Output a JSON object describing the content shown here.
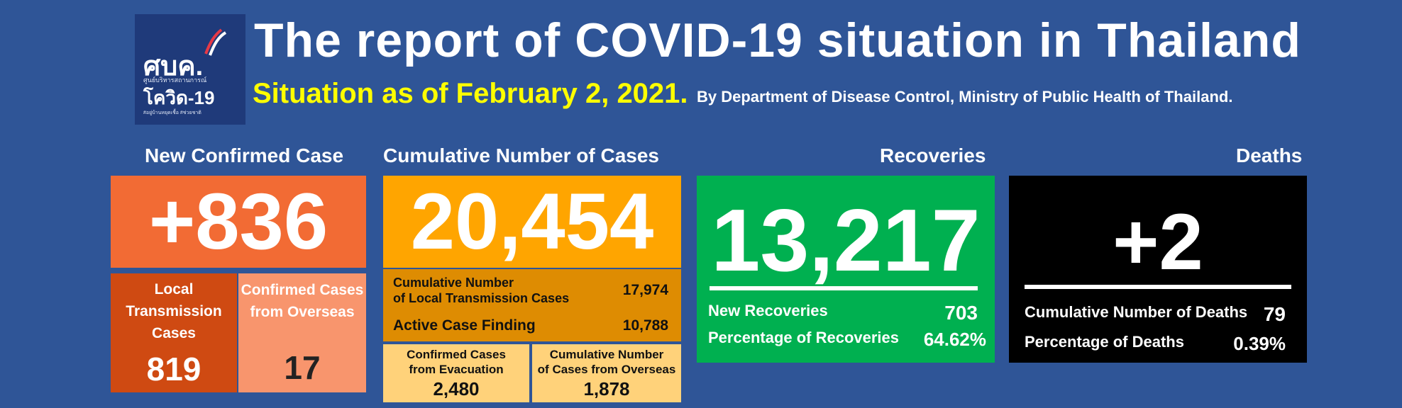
{
  "logo": {
    "mark": "ศบค.",
    "sub": "ศูนย์บริหารสถานการณ์",
    "covid": "โควิด-19",
    "tag": "#อยู่บ้านหยุดเชื้อ #ช่วยชาติ"
  },
  "header": {
    "title": "The report of COVID-19 situation in Thailand",
    "situation": "Situation as of February 2, 2021.",
    "byline": "By Department of Disease Control, Ministry of Public Health of Thailand."
  },
  "new_cases": {
    "heading": "New Confirmed Case",
    "value": "+836",
    "local_label": "Local Transmission Cases",
    "local_value": "819",
    "overseas_label": "Confirmed Cases from Overseas",
    "overseas_value": "17"
  },
  "cumulative": {
    "heading": "Cumulative Number of Cases",
    "value": "20,454",
    "local_label_1": "Cumulative Number",
    "local_label_2": "of Local Transmission Cases",
    "local_value": "17,974",
    "active_label": "Active Case Finding",
    "active_value": "10,788",
    "evac_label_1": "Confirmed Cases",
    "evac_label_2": "from Evacuation",
    "evac_value": "2,480",
    "overseas_label_1": "Cumulative Number",
    "overseas_label_2": "of Cases from Overseas",
    "overseas_value": "1,878"
  },
  "recoveries": {
    "heading": "Recoveries",
    "value": "13,217",
    "new_label": "New Recoveries",
    "new_value": "703",
    "pct_label": "Percentage of Recoveries",
    "pct_value": "64.62%"
  },
  "deaths": {
    "heading": "Deaths",
    "value": "+2",
    "cum_label": "Cumulative Number of Deaths",
    "cum_value": "79",
    "pct_label": "Percentage of Deaths",
    "pct_value": "0.39%"
  },
  "colors": {
    "background": "#2f5597",
    "new_main": "#f26b34",
    "local": "#cf4a12",
    "overseas": "#f8956d",
    "cumulative": "#ffa500",
    "recoveries": "#00b050",
    "deaths": "#000000",
    "situation_text": "#ffff00"
  }
}
